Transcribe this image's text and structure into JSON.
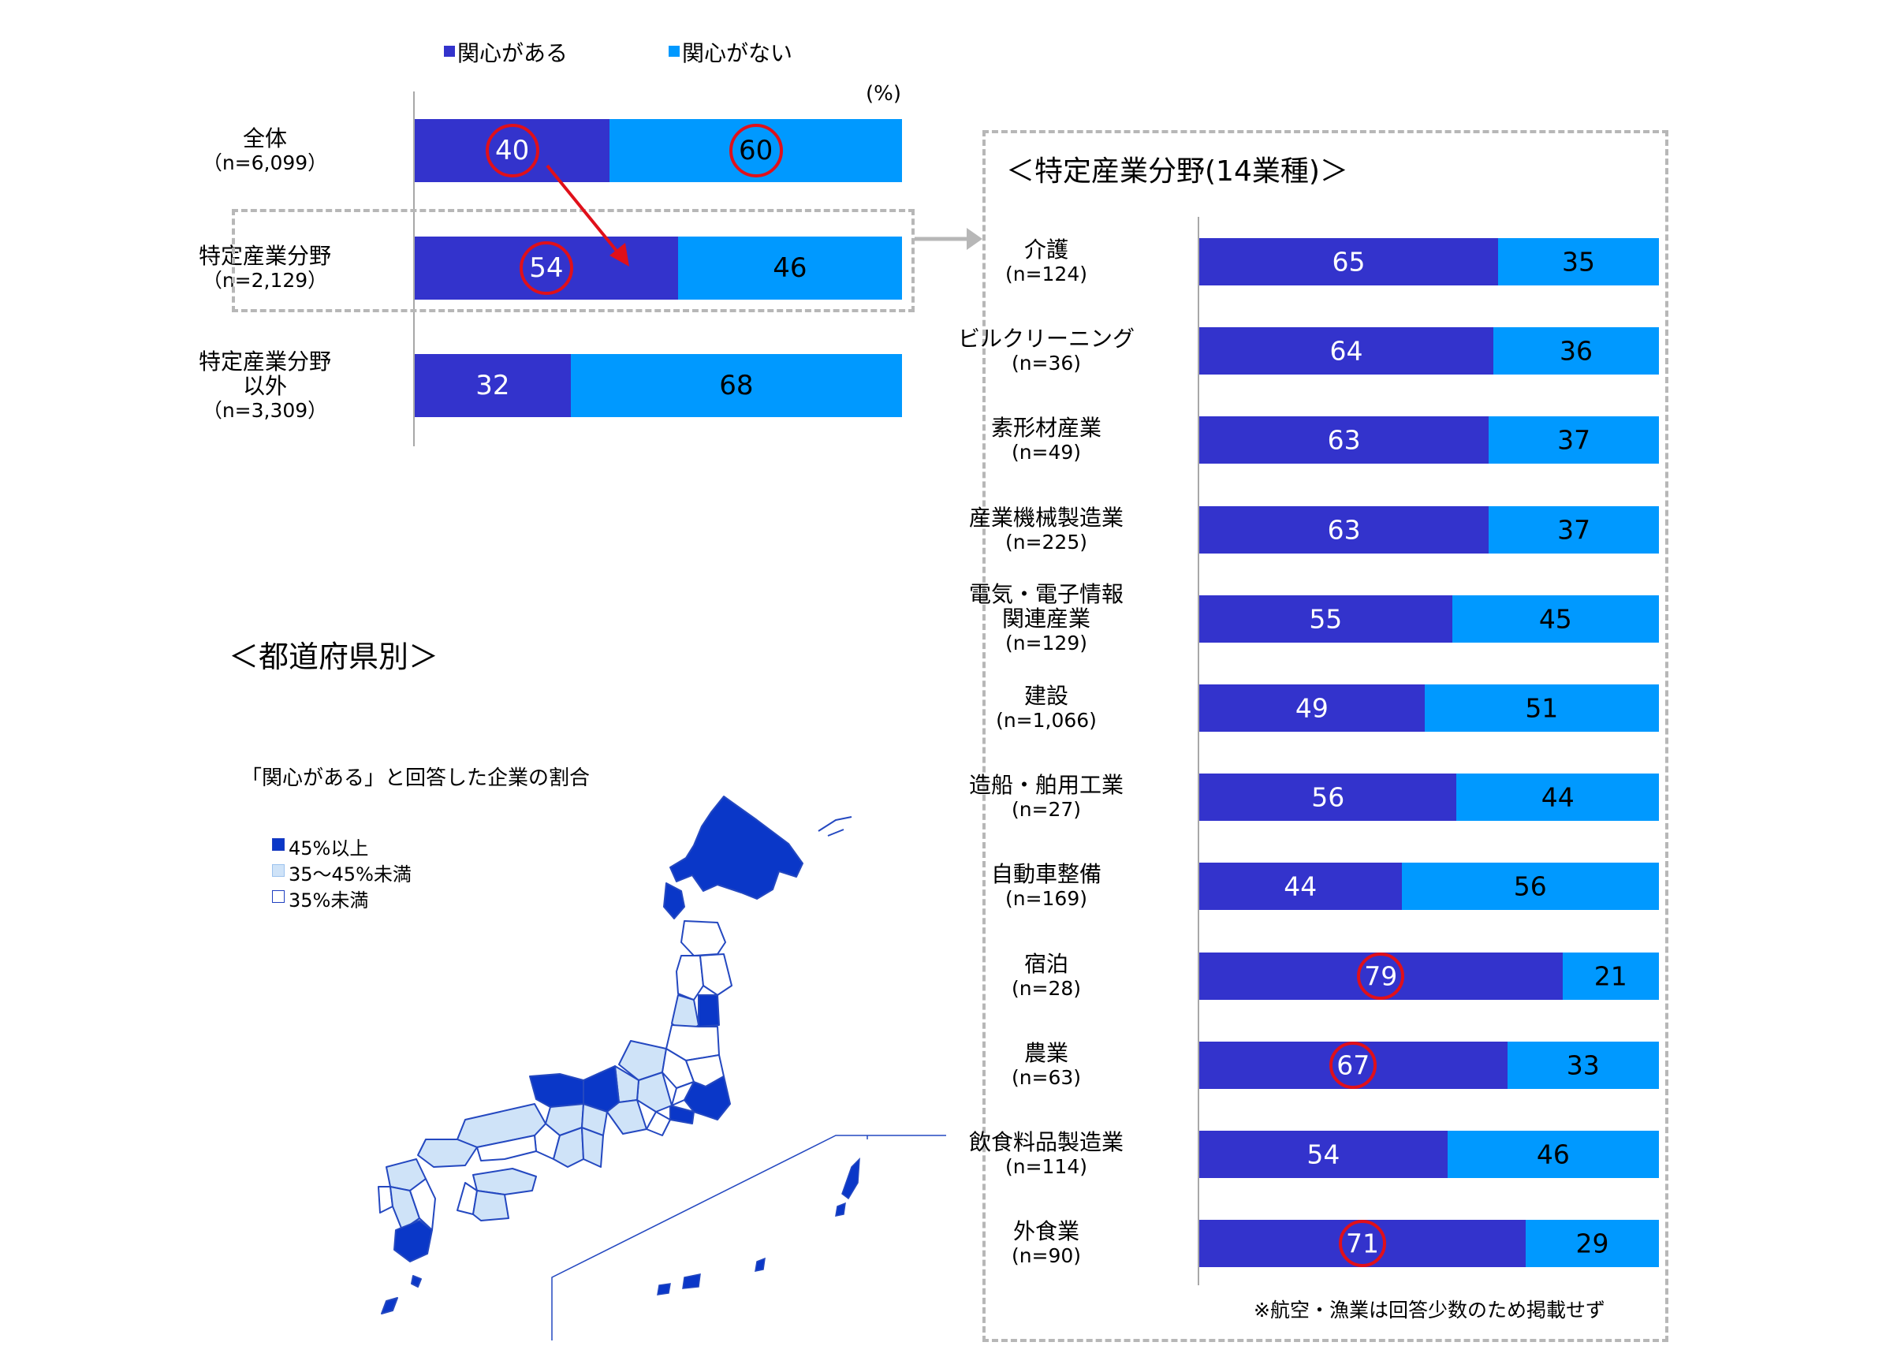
{
  "colors": {
    "yes": "#3333cc",
    "no": "#0099ff",
    "highlight": "#e0101a",
    "map_high": "#0a37c8",
    "map_mid": "#cfe3f8",
    "map_low": "#ffffff"
  },
  "legend": {
    "yes": "関心がある",
    "no": "関心がない"
  },
  "unit": "(%)",
  "chart_data": [
    {
      "type": "bar",
      "orientation": "horizontal",
      "stacked": true,
      "categories": [
        {
          "name": "全体",
          "n": "（n=6,099）"
        },
        {
          "name": "特定産業分野",
          "n": "（n=2,129）"
        },
        {
          "name": "特定産業分野\n以外",
          "n": "（n=3,309）"
        }
      ],
      "series": [
        {
          "name": "関心がある",
          "values": [
            40,
            54,
            32
          ]
        },
        {
          "name": "関心がない",
          "values": [
            60,
            46,
            68
          ]
        }
      ],
      "xlim": [
        0,
        100
      ],
      "highlighted": [
        [
          0,
          0
        ],
        [
          0,
          1
        ],
        [
          1,
          0
        ]
      ]
    },
    {
      "type": "bar",
      "orientation": "horizontal",
      "stacked": true,
      "title": "＜特定産業分野(14業種)＞",
      "categories": [
        {
          "name": "介護",
          "n": "(n=124)"
        },
        {
          "name": "ビルクリーニング",
          "n": "(n=36)"
        },
        {
          "name": "素形材産業",
          "n": "(n=49)"
        },
        {
          "name": "産業機械製造業",
          "n": "(n=225)"
        },
        {
          "name": "電気・電子情報\n関連産業",
          "n": "(n=129)"
        },
        {
          "name": "建設",
          "n": "(n=1,066)"
        },
        {
          "name": "造船・舶用工業",
          "n": "(n=27)"
        },
        {
          "name": "自動車整備",
          "n": "(n=169)"
        },
        {
          "name": "宿泊",
          "n": "(n=28)"
        },
        {
          "name": "農業",
          "n": "(n=63)"
        },
        {
          "name": "飲食料品製造業",
          "n": "(n=114)"
        },
        {
          "name": "外食業",
          "n": "(n=90)"
        }
      ],
      "series": [
        {
          "name": "関心がある",
          "values": [
            65,
            64,
            63,
            63,
            55,
            49,
            56,
            44,
            79,
            67,
            54,
            71
          ]
        },
        {
          "name": "関心がない",
          "values": [
            35,
            36,
            37,
            37,
            45,
            51,
            44,
            56,
            21,
            33,
            46,
            29
          ]
        }
      ],
      "xlim": [
        0,
        100
      ],
      "highlighted": [
        [
          0,
          8
        ],
        [
          0,
          9
        ],
        [
          0,
          11
        ]
      ],
      "note": "※航空・漁業は回答少数のため掲載せず"
    }
  ],
  "map": {
    "title": "＜都道府県別＞",
    "caption": "「関心がある」と回答した企業の割合",
    "legend": [
      "45%以上",
      "35～45%未満",
      "35%未満"
    ]
  }
}
